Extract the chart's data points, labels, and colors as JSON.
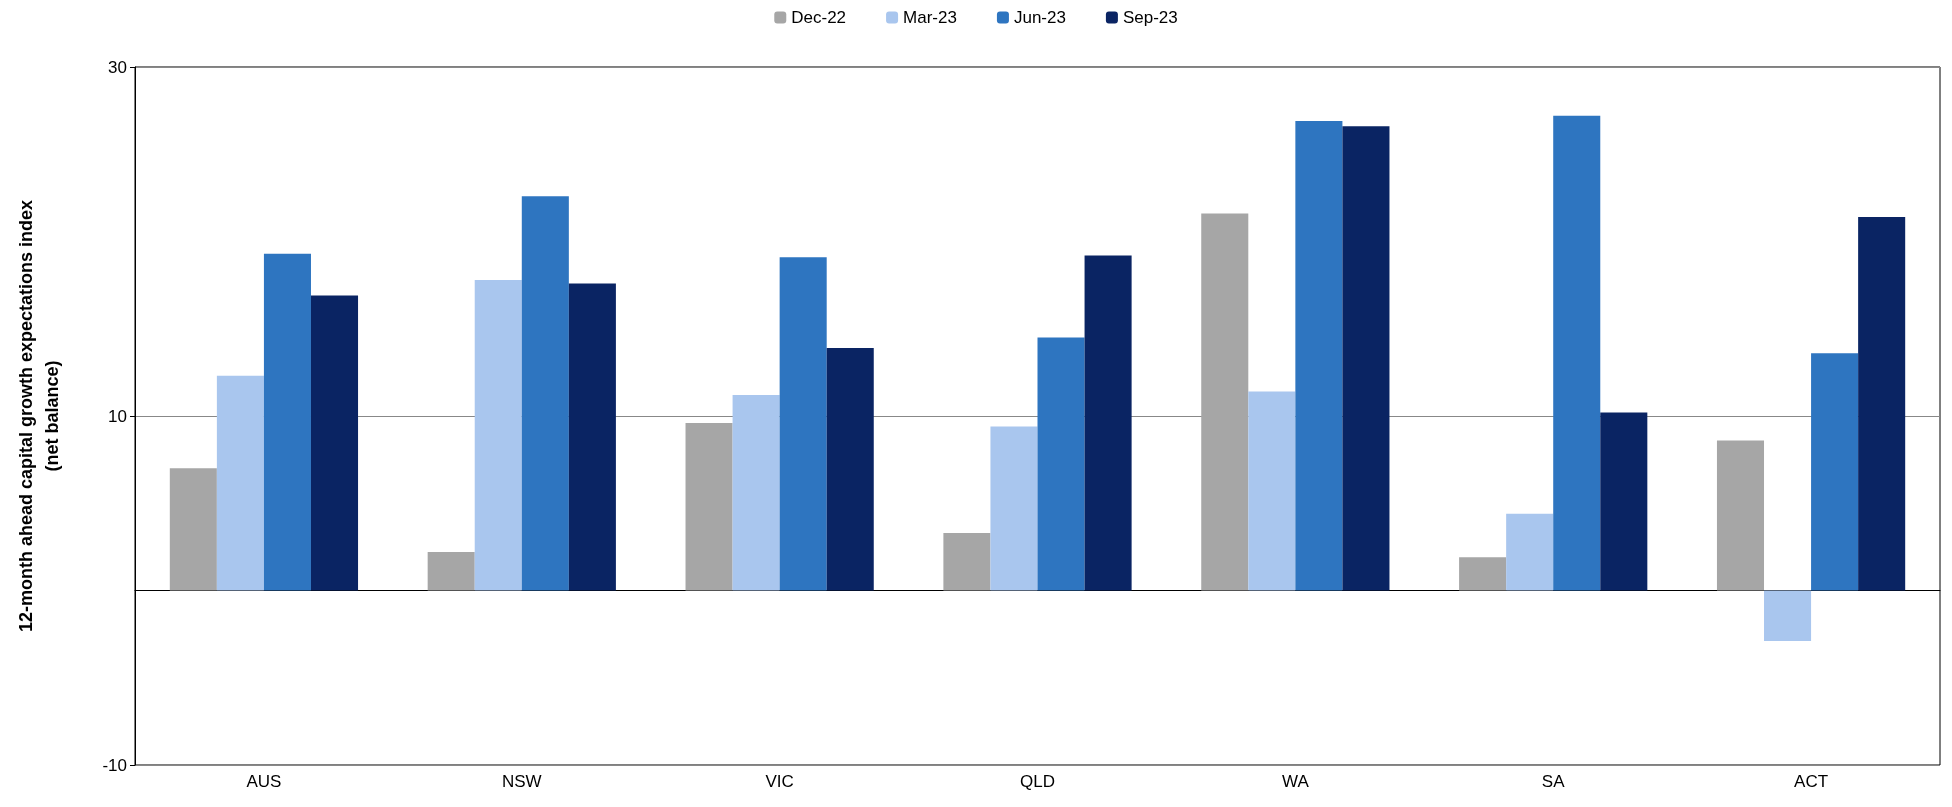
{
  "chart_data": {
    "type": "bar",
    "ylabel": "12-month ahead capital growth expectations index\n(net balance)",
    "categories": [
      "AUS",
      "NSW",
      "VIC",
      "QLD",
      "WA",
      "SA",
      "ACT"
    ],
    "series": [
      {
        "name": "Dec-22",
        "color": "#a6a6a6",
        "values": [
          7.0,
          2.2,
          9.6,
          3.3,
          21.6,
          1.9,
          8.6
        ]
      },
      {
        "name": "Mar-23",
        "color": "#a9c6ee",
        "values": [
          12.3,
          17.8,
          11.2,
          9.4,
          11.4,
          4.4,
          -2.9
        ]
      },
      {
        "name": "Jun-23",
        "color": "#2e75c0",
        "values": [
          19.3,
          22.6,
          19.1,
          14.5,
          26.9,
          27.2,
          13.6
        ]
      },
      {
        "name": "Sep-23",
        "color": "#0a2463",
        "values": [
          16.9,
          17.6,
          13.9,
          19.2,
          26.6,
          10.2,
          21.4
        ]
      }
    ],
    "ylim": [
      -10,
      30
    ],
    "yticks": [
      -10,
      10,
      30
    ],
    "grid": "y",
    "legend": "top"
  }
}
